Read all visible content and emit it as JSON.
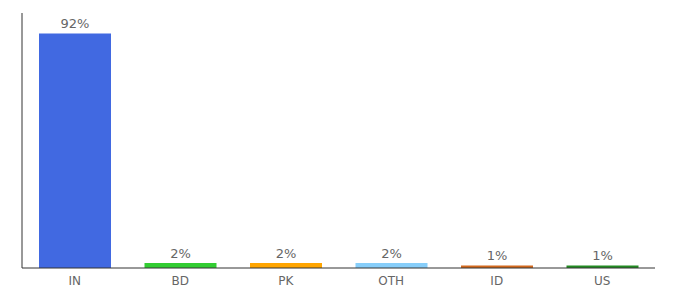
{
  "chart_data": {
    "type": "bar",
    "categories": [
      "IN",
      "BD",
      "PK",
      "OTH",
      "ID",
      "US"
    ],
    "values": [
      92,
      2,
      2,
      2,
      1,
      1
    ],
    "value_labels": [
      "92%",
      "2%",
      "2%",
      "2%",
      "1%",
      "1%"
    ],
    "colors": [
      "#4169e1",
      "#32cd32",
      "#ffa500",
      "#87cefa",
      "#d2691e",
      "#228b22"
    ],
    "ylim": [
      0,
      100
    ],
    "data_labels": true,
    "tick_labels": "x",
    "grid": false
  }
}
